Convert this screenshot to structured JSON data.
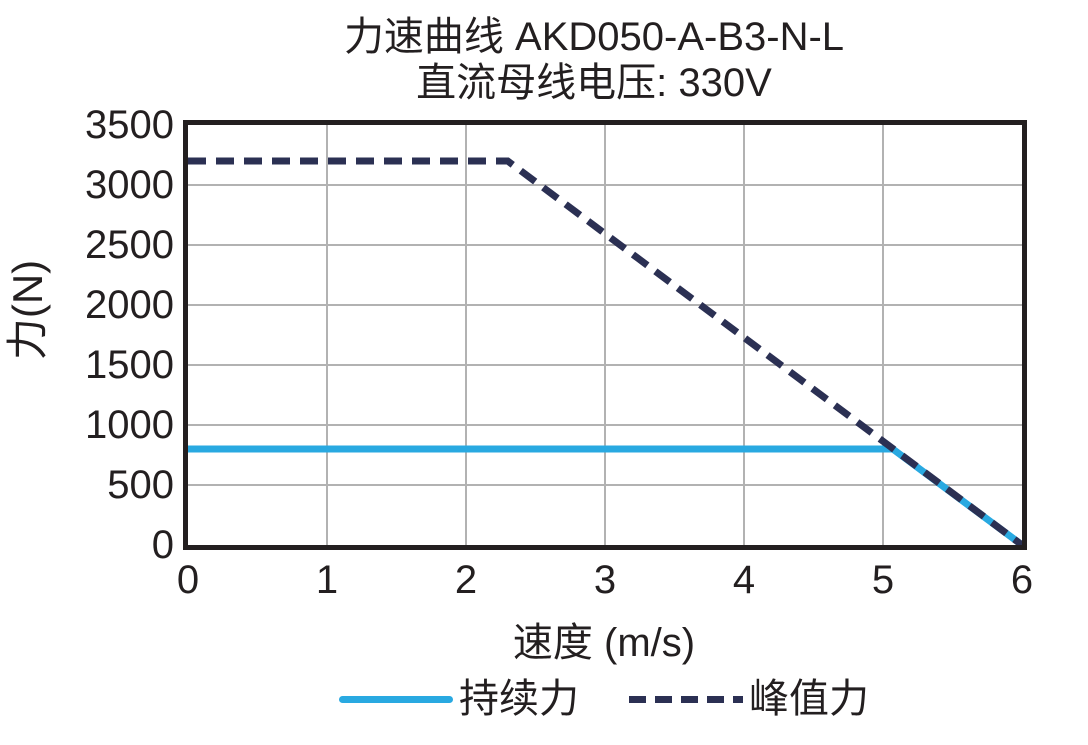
{
  "title": "力速曲线 AKD050-A-B3-N-L",
  "subtitle": "直流母线电压: 330V",
  "chart_data": {
    "type": "line",
    "title": "力速曲线 AKD050-A-B3-N-L",
    "subtitle": "直流母线电压: 330V",
    "xlabel": "速度 (m/s)",
    "ylabel": "力(N)",
    "xlim": [
      0,
      6
    ],
    "ylim": [
      0,
      3500
    ],
    "xticks": [
      0,
      1,
      2,
      3,
      4,
      5,
      6
    ],
    "yticks": [
      0,
      500,
      1000,
      1500,
      2000,
      2500,
      3000,
      3500
    ],
    "grid": true,
    "legend_position": "bottom",
    "series": [
      {
        "key": "continuous-force",
        "name": "持续力",
        "style": "solid",
        "color": "#29a9e1",
        "points": [
          [
            0,
            800
          ],
          [
            5.07,
            800
          ],
          [
            6,
            0
          ]
        ]
      },
      {
        "key": "peak-force",
        "name": "峰值力",
        "style": "dashed",
        "color": "#2b3053",
        "points": [
          [
            0,
            3200
          ],
          [
            2.3,
            3200
          ],
          [
            6,
            0
          ]
        ]
      }
    ]
  },
  "colors": {
    "text": "#231f20",
    "frame": "#231f20",
    "grid": "#b2b2b2",
    "continuous": "#29a9e1",
    "peak": "#2b3053",
    "background": "#ffffff"
  }
}
